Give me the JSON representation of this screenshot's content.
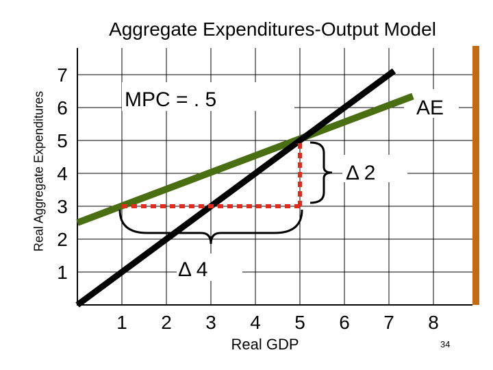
{
  "chart_data": {
    "type": "line",
    "title": "Aggregate Expenditures-Output Model",
    "xlabel": "Real GDP",
    "ylabel": "Real Aggregate Expenditures",
    "x_ticks": [
      "1",
      "2",
      "3",
      "4",
      "5",
      "6",
      "7",
      "8"
    ],
    "y_ticks": [
      "1",
      "2",
      "3",
      "4",
      "5",
      "6",
      "7"
    ],
    "xlim": [
      0,
      8
    ],
    "ylim": [
      0,
      7
    ],
    "grid": true,
    "series": [
      {
        "name": "AE",
        "color": "#4a6f12",
        "x": [
          0,
          8
        ],
        "y": [
          2.5,
          6.5
        ]
      },
      {
        "name": "",
        "color": "#000000",
        "x": [
          0,
          7.5
        ],
        "y": [
          0,
          7.5
        ]
      }
    ],
    "annotations": {
      "mpc_label": "MPC = . 5",
      "ae_label": "AE",
      "delta_y_label": "Δ 2",
      "delta_x_label": "Δ 4",
      "delta_y": 2,
      "delta_x": 4,
      "from_point": [
        1,
        3
      ],
      "to_point": [
        5,
        5
      ],
      "dotted_color": "#e32b1b"
    },
    "accent_bar_color": "#c46a10"
  },
  "page_number": "34"
}
